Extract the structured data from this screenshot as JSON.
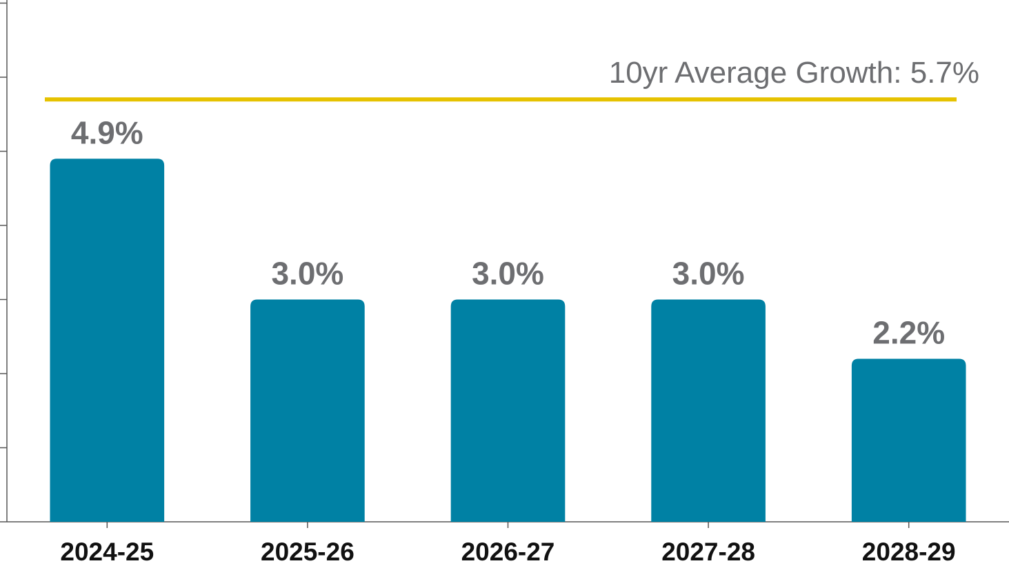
{
  "chart_data": {
    "type": "bar",
    "categories": [
      "2024-25",
      "2025-26",
      "2026-27",
      "2027-28",
      "2028-29"
    ],
    "values": [
      4.9,
      3.0,
      3.0,
      3.0,
      2.2
    ],
    "value_labels": [
      "4.9%",
      "3.0%",
      "3.0%",
      "3.0%",
      "2.2%"
    ],
    "color": "#0081a4",
    "ylim": [
      0,
      7
    ],
    "yticks": [
      0,
      1,
      2,
      3,
      4,
      5,
      6,
      7
    ],
    "reference_line": {
      "value": 5.7,
      "label": "10yr Average Growth: 5.7%",
      "color": "#e6c200"
    }
  }
}
